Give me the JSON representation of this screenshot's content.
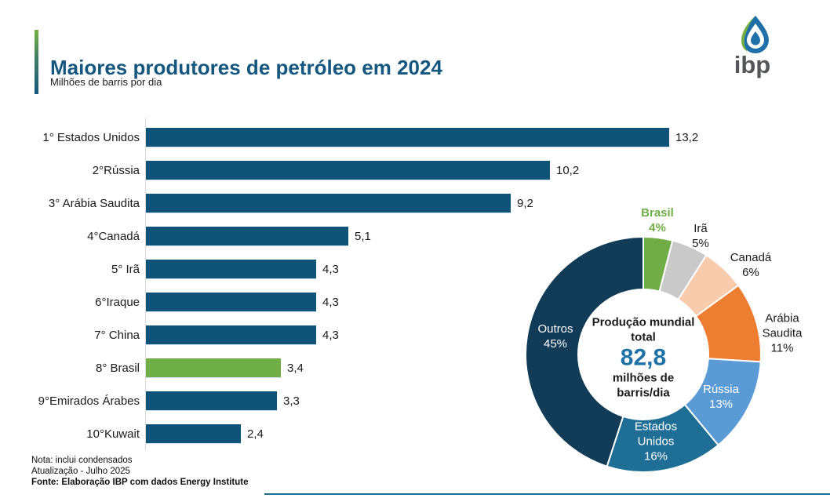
{
  "header": {
    "title": "Maiores produtores de petróleo em 2024",
    "subtitle": "Milhões de barris por dia",
    "logo_text": "ibp"
  },
  "colors": {
    "title_blue": "#15577E",
    "accent_green": "#76B043",
    "bar_blue": "#105378",
    "highlight_green": "#6FAD47",
    "axis_gray": "#D9D9D9",
    "center_value_blue": "#1F72A5",
    "footer_rule_blue": "#1F6E96"
  },
  "chart_data": [
    {
      "type": "bar",
      "orientation": "horizontal",
      "title": "Maiores produtores de petróleo em 2024",
      "unit": "Milhões de barris por dia",
      "categories": [
        "1° Estados Unidos",
        "2°Rússia",
        "3° Arábia Saudita",
        "4°Canadá",
        "5° Irã",
        "6°Iraque",
        "7° China",
        "8° Brasil",
        "9°Emirados Árabes",
        "10°Kuwait"
      ],
      "values": [
        13.2,
        10.2,
        9.2,
        5.1,
        4.3,
        4.3,
        4.3,
        3.4,
        3.3,
        2.4
      ],
      "value_labels": [
        "13,2",
        "10,2",
        "9,2",
        "5,1",
        "4,3",
        "4,3",
        "4,3",
        "3,4",
        "3,3",
        "2,4"
      ],
      "xlim": [
        0,
        13.2
      ],
      "grid": false,
      "highlight_index": 7,
      "bar_color": "#105378",
      "highlight_color": "#6FAD47"
    },
    {
      "type": "pie",
      "subtype": "donut",
      "start_angle": "12 o'clock, clockwise",
      "segments": [
        {
          "name": "Brasil",
          "pct": 4,
          "pct_label": "4%",
          "color": "#70AD47",
          "label_lines": [
            "Brasil"
          ]
        },
        {
          "name": "Irã",
          "pct": 5,
          "pct_label": "5%",
          "color": "#C9C9C9",
          "label_lines": [
            "Irã"
          ]
        },
        {
          "name": "Canadá",
          "pct": 6,
          "pct_label": "6%",
          "color": "#F8CBAD",
          "label_lines": [
            "Canadá"
          ]
        },
        {
          "name": "Arábia Saudita",
          "pct": 11,
          "pct_label": "11%",
          "color": "#ED7D31",
          "label_lines": [
            "Arábia",
            "Saudita"
          ]
        },
        {
          "name": "Rússia",
          "pct": 13,
          "pct_label": "13%",
          "color": "#5B9BD5",
          "label_lines": [
            "Rússia"
          ]
        },
        {
          "name": "Estados Unidos",
          "pct": 16,
          "pct_label": "16%",
          "color": "#1F6E96",
          "label_lines": [
            "Estados",
            "Unidos"
          ]
        },
        {
          "name": "Outros",
          "pct": 45,
          "pct_label": "45%",
          "color": "#123B57",
          "label_lines": [
            "Outros"
          ]
        }
      ],
      "center": {
        "title_line1": "Produção mundial",
        "title_line2": "total",
        "value": "82,8",
        "unit_line1": "milhões de",
        "unit_line2": "barris/dia"
      }
    }
  ],
  "notes": {
    "line1": "Nota: inclui condensados",
    "line2": "Atualização - Julho 2025",
    "line3": "Fonte: Elaboração IBP com dados Energy Institute"
  }
}
